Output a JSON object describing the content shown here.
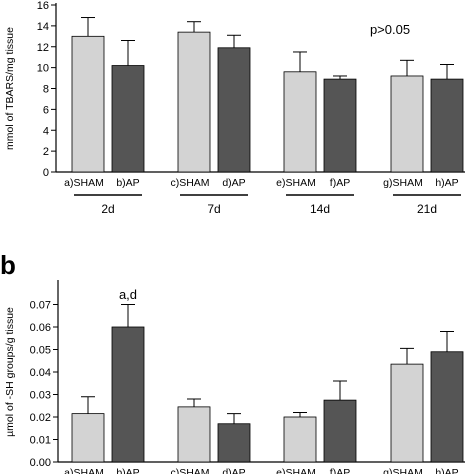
{
  "colors": {
    "sham": "#d3d3d3",
    "ap": "#555555",
    "axis": "#000000",
    "background": "#ffffff"
  },
  "chart_data": [
    {
      "type": "bar",
      "panel": "",
      "ylabel": "mmol of TBARS/mg tissue",
      "ylim": [
        0,
        16
      ],
      "yticks": [
        0,
        2,
        4,
        6,
        8,
        10,
        12,
        14,
        16
      ],
      "categories": [
        "a)SHAM",
        "b)AP",
        "c)SHAM",
        "d)AP",
        "e)SHAM",
        "f)AP",
        "g)SHAM",
        "h)AP"
      ],
      "groups": [
        "2d",
        "7d",
        "14d",
        "21d"
      ],
      "values": [
        13.0,
        10.2,
        13.4,
        11.9,
        9.6,
        8.9,
        9.2,
        8.9
      ],
      "errors": [
        1.8,
        2.4,
        1.0,
        1.2,
        1.9,
        0.3,
        1.5,
        1.4
      ],
      "annotations": [
        {
          "text": "p>0.05",
          "anchor_category": "f)AP",
          "y": 13.2
        }
      ],
      "grid": false
    },
    {
      "type": "bar",
      "panel": "b",
      "ylabel": "µmol of -SH groups/g tissue",
      "ylim": [
        0,
        0.08
      ],
      "yticks": [
        0.0,
        0.01,
        0.02,
        0.03,
        0.04,
        0.05,
        0.06,
        0.07
      ],
      "categories": [
        "a)SHAM",
        "b)AP",
        "c)SHAM",
        "d)AP",
        "e)SHAM",
        "f)AP",
        "g)SHAM",
        "h)AP"
      ],
      "values": [
        0.0215,
        0.06,
        0.0245,
        0.017,
        0.02,
        0.0275,
        0.0435,
        0.049
      ],
      "errors": [
        0.0075,
        0.01,
        0.0035,
        0.0045,
        0.002,
        0.0085,
        0.007,
        0.009
      ],
      "annotations": [
        {
          "text": "a,d",
          "anchor_category": "b)AP",
          "y": 0.0725
        }
      ],
      "grid": false
    }
  ]
}
